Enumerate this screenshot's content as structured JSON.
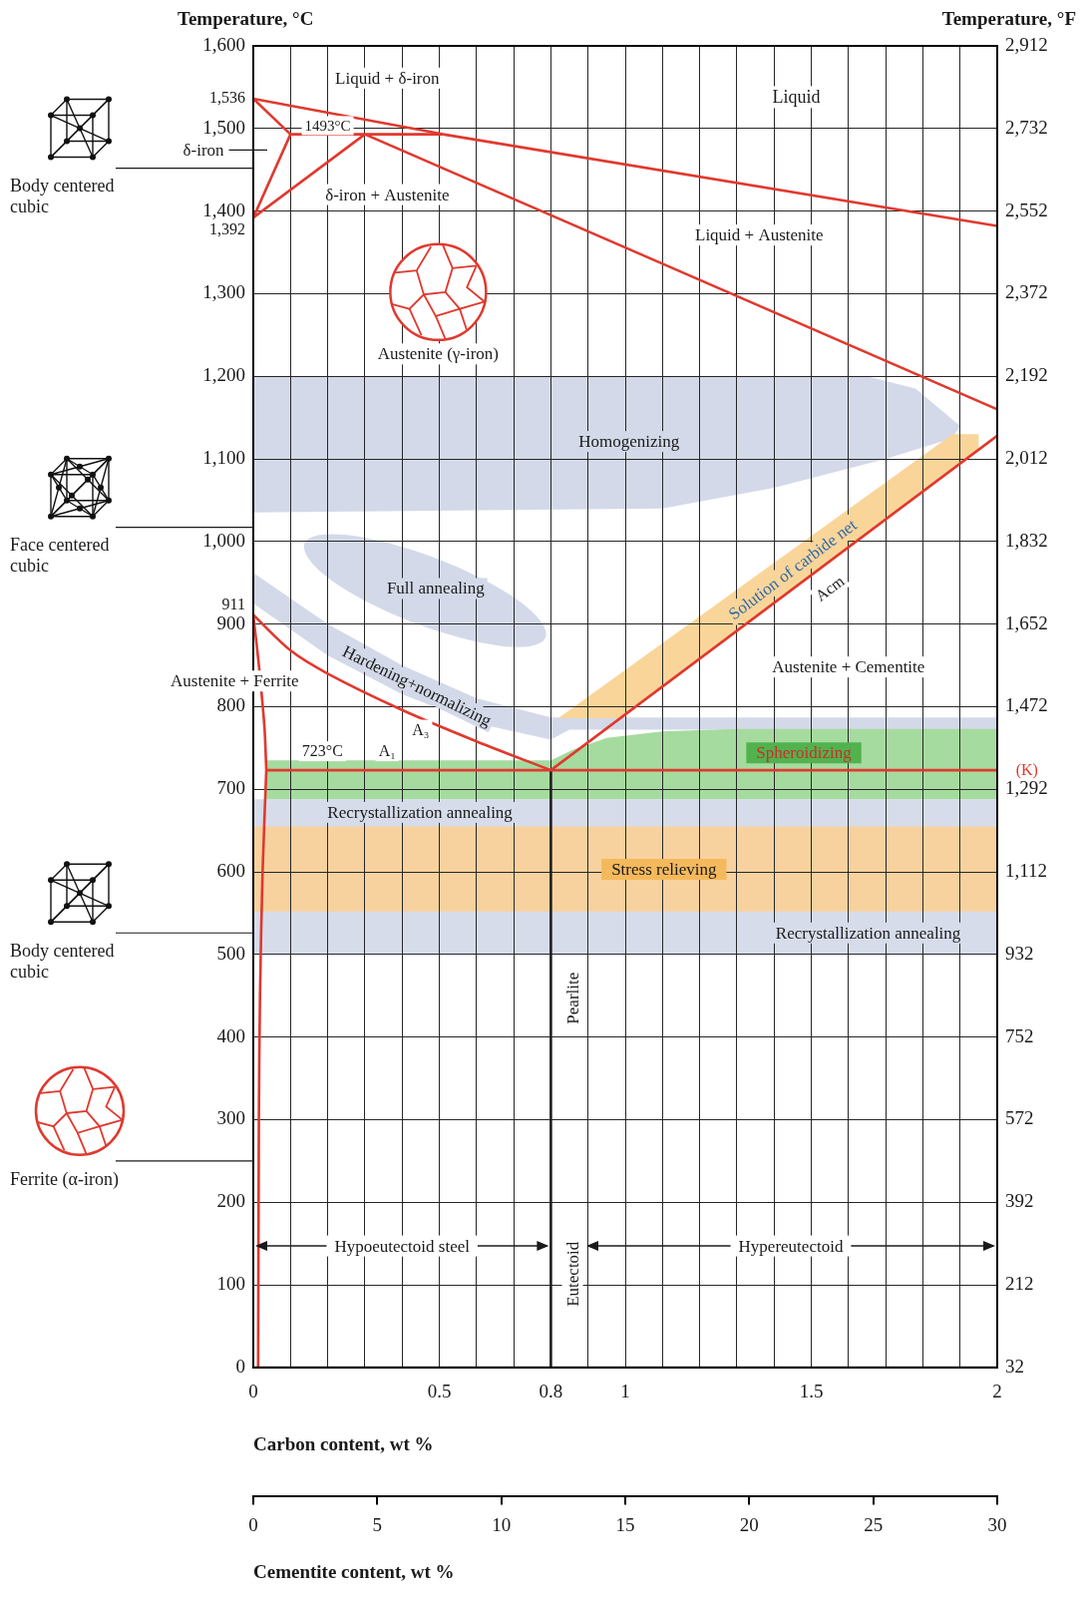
{
  "chart_data": {
    "type": "line",
    "y_title": "Temperature, °C",
    "y2_title": "Temperature, °F",
    "x_title": "Carbon content, wt %",
    "x2_title": "Cementite content, wt %",
    "xlim": [
      0,
      2
    ],
    "xticks": [
      0,
      {
        "value": 0.1,
        "label": null
      },
      {
        "value": 0.2,
        "label": null
      },
      {
        "value": 0.3,
        "label": null
      },
      {
        "value": 0.4,
        "label": null
      },
      0.5,
      {
        "value": 0.6,
        "label": null
      },
      {
        "value": 0.7,
        "label": null
      },
      0.8,
      {
        "value": 0.9,
        "label": null
      },
      1,
      {
        "value": 1.1,
        "label": null
      },
      {
        "value": 1.2,
        "label": null
      },
      {
        "value": 1.3,
        "label": null
      },
      {
        "value": 1.4,
        "label": null
      },
      1.5,
      {
        "value": 1.6,
        "label": null
      },
      {
        "value": 1.7,
        "label": null
      },
      {
        "value": 1.8,
        "label": null
      },
      {
        "value": 1.9,
        "label": null
      },
      2
    ],
    "x2lim": [
      0,
      30
    ],
    "x2ticks": [
      0,
      5,
      10,
      15,
      20,
      25,
      30
    ],
    "ylim": [
      0,
      1600
    ],
    "yticks": [
      0,
      100,
      200,
      300,
      400,
      500,
      600,
      700,
      800,
      900,
      {
        "value": 1000,
        "label": "1,000"
      },
      {
        "value": 1100,
        "label": "1,100"
      },
      {
        "value": 1200,
        "label": "1,200"
      },
      {
        "value": 1300,
        "label": "1,300"
      },
      {
        "value": 1400,
        "label": "1,400"
      },
      {
        "value": 1500,
        "label": "1,500"
      },
      {
        "value": 1600,
        "label": "1,600"
      }
    ],
    "y2lim": [
      32,
      2912
    ],
    "y2ticks": [
      32,
      212,
      392,
      572,
      752,
      932,
      {
        "value": 1112,
        "label": "1,112"
      },
      {
        "value": 1292,
        "label": "1,292"
      },
      {
        "value": 1472,
        "label": "1,472"
      },
      {
        "value": 1652,
        "label": "1,652"
      },
      {
        "value": 1832,
        "label": "1,832"
      },
      {
        "value": 2012,
        "label": "2,012"
      },
      {
        "value": 2192,
        "label": "2,192"
      },
      {
        "value": 2372,
        "label": "2,372"
      },
      {
        "value": 2552,
        "label": "2,552"
      },
      {
        "value": 2732,
        "label": "2,732"
      },
      {
        "value": 2912,
        "label": "2,912"
      }
    ],
    "grid": true,
    "series": [
      {
        "color": "#e0392f",
        "line_style": "solid",
        "x": [
          0,
          0.51
        ],
        "values": [
          1536,
          1493
        ]
      },
      {
        "color": "#e0392f",
        "line_style": "solid",
        "x": [
          0.51,
          2
        ],
        "values": [
          1493,
          1382
        ]
      },
      {
        "color": "#e0392f",
        "line_style": "solid",
        "x": [
          0,
          0.1
        ],
        "values": [
          1536,
          1493
        ]
      },
      {
        "color": "#e0392f",
        "line_style": "solid",
        "x": [
          0,
          0.1
        ],
        "values": [
          1392,
          1493
        ]
      },
      {
        "color": "#e0392f",
        "line_style": "solid",
        "x": [
          0.1,
          0.51
        ],
        "values": [
          1493,
          1493
        ]
      },
      {
        "color": "#e0392f",
        "line_style": "solid",
        "x": [
          0,
          0.3
        ],
        "values": [
          1392,
          1493
        ]
      },
      {
        "color": "#e0392f",
        "line_style": "solid",
        "x": [
          0.3,
          2
        ],
        "values": [
          1493,
          1160
        ]
      },
      {
        "color": "#e0392f",
        "line_style": "solid",
        "x": [
          0,
          0.1,
          0.2,
          0.4,
          0.6,
          0.8
        ],
        "values": [
          911,
          868,
          840,
          796,
          758,
          723
        ]
      },
      {
        "color": "#e0392f",
        "line_style": "solid",
        "x": [
          0.8,
          2
        ],
        "values": [
          723,
          1128
        ]
      },
      {
        "color": "#e0392f",
        "line_style": "solid",
        "x": [
          0.035,
          2
        ],
        "values": [
          723,
          723
        ]
      },
      {
        "color": "#e0392f",
        "line_style": "solid",
        "x": [
          0,
          0.015,
          0.03,
          0.035
        ],
        "values": [
          911,
          850,
          775,
          723
        ]
      },
      {
        "color": "#e0392f",
        "line_style": "solid",
        "x": [
          0.035,
          0.025,
          0.018,
          0.015,
          0.013
        ],
        "values": [
          723,
          600,
          450,
          300,
          0
        ]
      },
      {
        "color": "#1f1f1f",
        "line_style": "solid",
        "x": [
          0.8,
          0.8
        ],
        "values": [
          0,
          723
        ]
      }
    ],
    "regions": [
      {
        "label": "Homogenizing",
        "color": "#d3d9e8",
        "x": [
          0,
          1.65,
          1.78,
          1.9,
          1.88,
          1.7,
          1.4,
          1.1,
          0
        ],
        "values": [
          1200,
          1200,
          1185,
          1140,
          1125,
          1100,
          1065,
          1040,
          1035
        ],
        "label_at": [
          [
            1.01,
            1121
          ]
        ]
      },
      {
        "label": "Full annealing",
        "color": "#d3d9e8",
        "x": [
          0.811,
          0.686,
          0.426,
          0.189,
          0.112,
          0.238,
          0.497,
          0.735
        ],
        "values": [
          879,
          868,
          899,
          954,
          1002,
          1013,
          982,
          927
        ],
        "label_at": [
          [
            0.49,
            943
          ]
        ]
      },
      {
        "label": "Recrystallization annealing",
        "color": "#d7dceb",
        "x": [
          0,
          2,
          2,
          0
        ],
        "values": [
          500,
          500,
          688,
          688
        ],
        "label_at": [
          [
            0.448,
            672
          ],
          [
            1.653,
            526
          ]
        ]
      },
      {
        "label": "Stress relieving",
        "color": "#f8d29e",
        "x": [
          0,
          2,
          2,
          0
        ],
        "values": [
          552,
          552,
          655,
          655
        ],
        "label_at": [
          [
            1.104,
            603
          ]
        ]
      },
      {
        "label": "Hardening+normalizing",
        "color": "#d3d9e8",
        "x": [
          0,
          0.2,
          0.4,
          0.6,
          0.8,
          2,
          2,
          0.85,
          0.8,
          0.6,
          0.4,
          0.2,
          0
        ],
        "values": [
          962,
          900,
          850,
          810,
          787,
          787,
          772,
          772,
          760,
          780,
          815,
          862,
          925
        ],
        "label_at": [
          [
            0.44,
            825
          ]
        ]
      },
      {
        "label": "Solution of carbide net",
        "color": "#fad59a",
        "x": [
          0.82,
          1.88,
          1.95,
          1.95,
          0.99
        ],
        "values": [
          786,
          1130,
          1130,
          1112,
          786
        ],
        "label_at": [
          [
            1.45,
            966
          ]
        ]
      },
      {
        "label": "Spheroidizing",
        "color": "#a6db9f",
        "x": [
          0.035,
          0.8,
          0.86,
          0.95,
          1.1,
          1.3,
          2,
          2,
          0.035
        ],
        "values": [
          735,
          735,
          748,
          762,
          770,
          773,
          773,
          688,
          688
        ],
        "label_at": [
          [
            1.48,
            744
          ]
        ]
      }
    ],
    "annotations": [
      {
        "text": "Liquid + δ-iron",
        "x": 0.36,
        "y": 1561
      },
      {
        "text": "1493°C",
        "x": 0.2,
        "y": 1503.5
      },
      {
        "text": "δ-iron + Austenite",
        "x": 0.36,
        "y": 1420
      },
      {
        "text": "δ-iron",
        "x": -0.134,
        "y": 1474
      },
      {
        "text": "Liquid",
        "x": 1.46,
        "y": 1538
      },
      {
        "text": "Liquid + Austenite",
        "x": 1.36,
        "y": 1371
      },
      {
        "text": "Austenite (γ-iron)",
        "x": 0.497,
        "y": 1227
      },
      {
        "text": "Austenite + Ferrite",
        "x": -0.05,
        "y": 831
      },
      {
        "text": "A₃",
        "x": 0.45,
        "y": 772
      },
      {
        "text": "723°C",
        "x": 0.186,
        "y": 746
      },
      {
        "text": "A₁",
        "x": 0.36,
        "y": 746
      },
      {
        "text": "Acm",
        "x": 1.55,
        "y": 943
      },
      {
        "text": "Austenite + Cementite",
        "x": 1.6,
        "y": 848
      },
      {
        "text": "(K)",
        "x": 2.08,
        "y": 723,
        "color": "#e0392f"
      },
      {
        "text": "Pearlite",
        "x": 0.858,
        "y": 447
      },
      {
        "text": "Eutectoid",
        "x": 0.858,
        "y": 113
      }
    ],
    "temperature_marks": [
      {
        "value": 1536,
        "label": "1,536"
      },
      {
        "value": 1392,
        "label": "1,392"
      },
      911
    ],
    "side_labels": [
      {
        "text": "Body centered cubic",
        "y": 1452
      },
      {
        "text": "Face centered cubic",
        "y": 1017
      },
      {
        "text": "Body centered cubic",
        "y": 526
      },
      {
        "text": "Ferrite (α-iron)",
        "y": 250
      }
    ],
    "spans": [
      {
        "text": "Hypoeutectoid steel",
        "from": 0,
        "to": 0.8,
        "y": 147
      },
      {
        "text": "Hypereutectoid",
        "from": 0.89,
        "to": 2,
        "y": 147
      }
    ]
  }
}
